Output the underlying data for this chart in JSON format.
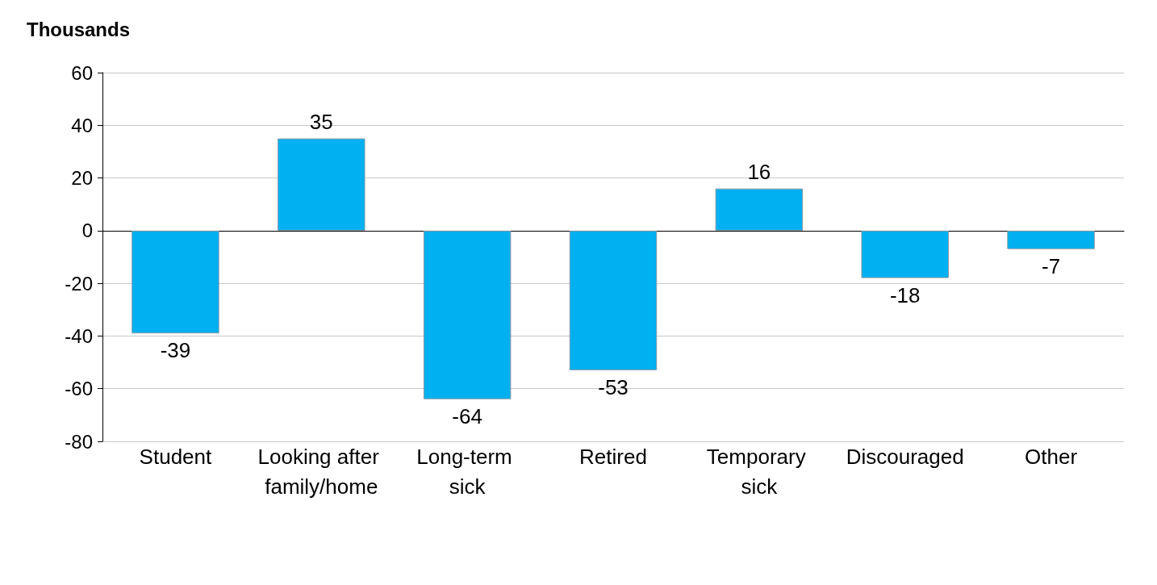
{
  "chart_data": {
    "type": "bar",
    "ylabel": "Thousands",
    "categories": [
      "Student",
      "Looking after family/home",
      "Long-term sick",
      "Retired",
      "Temporary sick",
      "Discouraged",
      "Other"
    ],
    "values": [
      -39,
      35,
      -64,
      -53,
      16,
      -18,
      -7
    ],
    "color": "#00b0f0",
    "ylim": [
      -80,
      60
    ],
    "yticks": [
      -80,
      -60,
      -40,
      -20,
      0,
      20,
      40,
      60
    ],
    "grid": "y",
    "data_labels": true
  }
}
